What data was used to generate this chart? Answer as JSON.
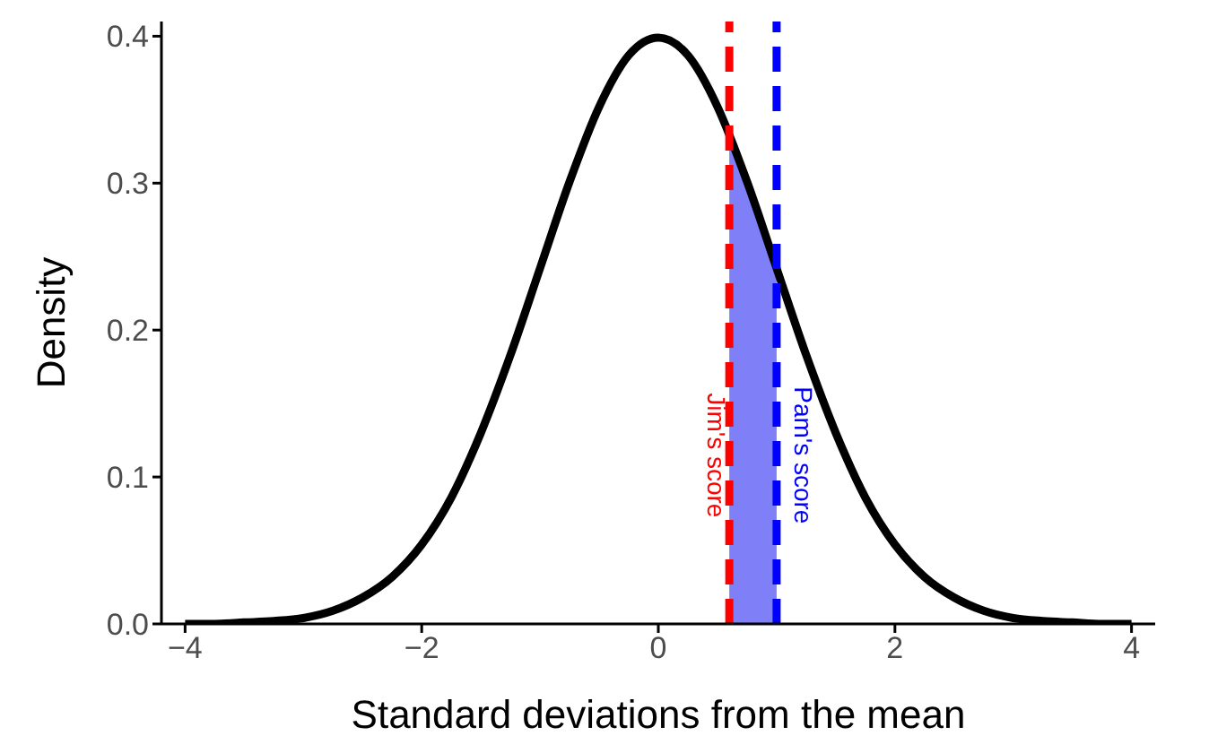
{
  "chart_data": {
    "type": "line",
    "xlabel": "Standard deviations from the mean",
    "ylabel": "Density",
    "xlim": [
      -4.2,
      4.2
    ],
    "ylim": [
      0,
      0.41
    ],
    "xticks": [
      {
        "value": -4,
        "label": "−4"
      },
      {
        "value": -2,
        "label": "−2"
      },
      0,
      2,
      4
    ],
    "yticks": [
      {
        "value": 0,
        "label": "0.0"
      },
      {
        "value": 0.1,
        "label": "0.1"
      },
      {
        "value": 0.2,
        "label": "0.2"
      },
      {
        "value": 0.3,
        "label": "0.3"
      },
      {
        "value": 0.4,
        "label": "0.4"
      }
    ],
    "grid": false,
    "marker": "none",
    "series": [
      {
        "type": "area",
        "color": "#7f7ff7",
        "x": [
          0.6,
          0.7,
          0.8,
          0.9,
          1.0
        ],
        "values": [
          0.333,
          0.312,
          0.29,
          0.266,
          0.242
        ]
      },
      {
        "color": "#000000",
        "x": [
          -4,
          -3.75,
          -3.5,
          -3.25,
          -3,
          -2.75,
          -2.5,
          -2.25,
          -2,
          -1.75,
          -1.5,
          -1.25,
          -1,
          -0.75,
          -0.5,
          -0.25,
          0,
          0.25,
          0.5,
          0.75,
          1,
          1.25,
          1.5,
          1.75,
          2,
          2.25,
          2.5,
          2.75,
          3,
          3.25,
          3.5,
          3.75,
          4
        ],
        "values": [
          0,
          0,
          0.001,
          0.002,
          0.004,
          0.009,
          0.018,
          0.032,
          0.054,
          0.086,
          0.13,
          0.183,
          0.242,
          0.301,
          0.352,
          0.387,
          0.399,
          0.387,
          0.352,
          0.301,
          0.242,
          0.183,
          0.13,
          0.086,
          0.054,
          0.032,
          0.018,
          0.009,
          0.004,
          0.002,
          0.001,
          0,
          0
        ]
      }
    ],
    "ref_lines": [
      {
        "axis": "x",
        "value": 0.6,
        "label": "Jim's score",
        "color": "#ff0000",
        "line_style": "dashed"
      },
      {
        "axis": "x",
        "value": 1.0,
        "label": "Pam's score",
        "color": "#0000ff",
        "line_style": "dashed"
      }
    ]
  }
}
